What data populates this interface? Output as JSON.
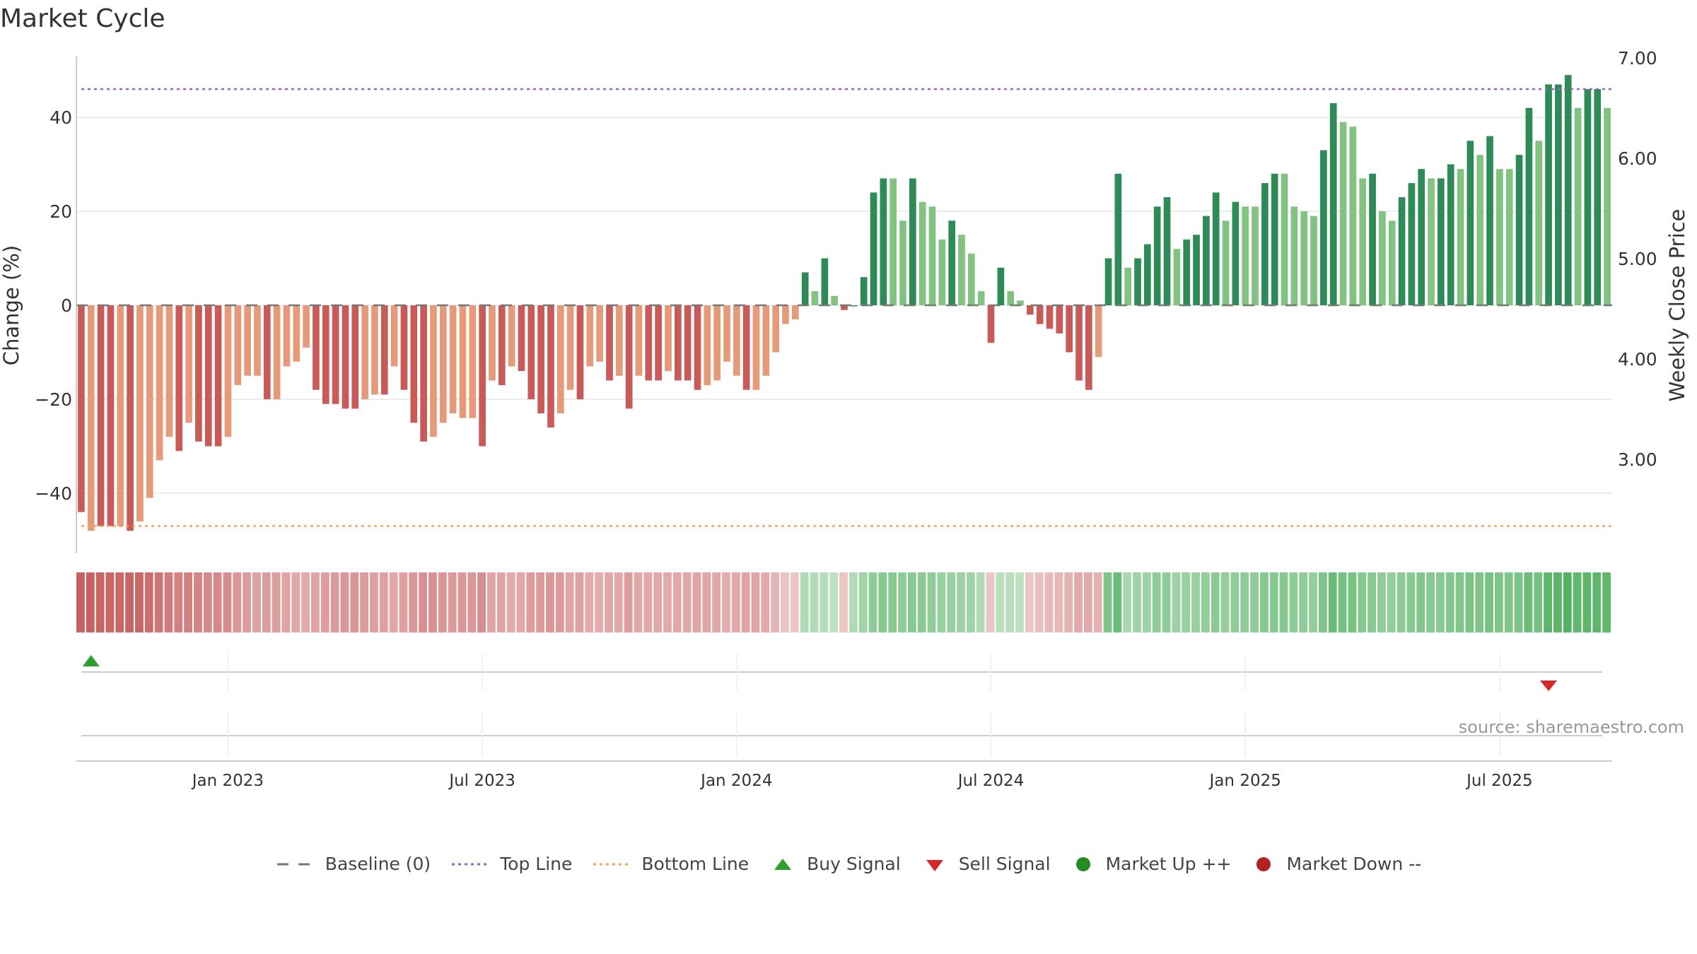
{
  "title": "Market Cycle",
  "source": "source: sharemaestro.com",
  "legend": {
    "baseline": "Baseline (0)",
    "top_line": "Top Line",
    "bottom_line": "Bottom Line",
    "buy_signal": "Buy Signal",
    "sell_signal": "Sell Signal",
    "market_up": "Market Up ++",
    "market_down": "Market Down --"
  },
  "colors": {
    "neg_dark": "#c85a5a",
    "neg_light": "#e59b7a",
    "pos_dark": "#2e8b57",
    "pos_light": "#82c282",
    "top_line": "#9467bd",
    "bottom_line": "#f4a261",
    "buy": "#2ca02c",
    "sell": "#d62728",
    "market_up": "#228b22",
    "market_down": "#b22222",
    "baseline": "#777777"
  },
  "chart_data": {
    "type": "bar",
    "ylabel": "Change (%)",
    "y2label": "Weekly Close Price",
    "ylim": [
      -53,
      53
    ],
    "y_ticks": [
      -40,
      -20,
      0,
      20,
      40
    ],
    "y_tick_labels": [
      "−40",
      "−20",
      "0",
      "20",
      "40"
    ],
    "y2_tick_labels": [
      "3.00",
      "4.00",
      "5.00",
      "6.00",
      "7.00"
    ],
    "x_tick_labels": [
      "Jan 2023",
      "Jul 2023",
      "Jan 2024",
      "Jul 2024",
      "Jan 2025",
      "Jul 2025"
    ],
    "x_tick_index": [
      15,
      41,
      67,
      93,
      119,
      145
    ],
    "top_line": 46,
    "bottom_line": -47,
    "baseline": 0,
    "values": [
      -44,
      -48,
      -47,
      -47,
      -47,
      -48,
      -46,
      -41,
      -33,
      -28,
      -31,
      -25,
      -29,
      -30,
      -30,
      -28,
      -17,
      -15,
      -15,
      -20,
      -20,
      -13,
      -12,
      -9,
      -18,
      -21,
      -21,
      -22,
      -22,
      -20,
      -19,
      -19,
      -13,
      -18,
      -25,
      -29,
      -28,
      -25,
      -23,
      -24,
      -24,
      -30,
      -16,
      -17,
      -13,
      -14,
      -20,
      -23,
      -26,
      -23,
      -18,
      -20,
      -13,
      -12,
      -16,
      -15,
      -22,
      -15,
      -16,
      -16,
      -14,
      -16,
      -16,
      -18,
      -17,
      -16,
      -12,
      -15,
      -18,
      -18,
      -15,
      -10,
      -4,
      -3,
      7,
      3,
      10,
      2,
      -1,
      0,
      6,
      24,
      27,
      27,
      18,
      27,
      22,
      21,
      14,
      18,
      15,
      11,
      3,
      -8,
      8,
      3,
      1,
      -2,
      -4,
      -5,
      -6,
      -10,
      -16,
      -18,
      -11,
      10,
      28,
      8,
      10,
      13,
      21,
      23,
      12,
      14,
      15,
      19,
      24,
      18,
      22,
      21,
      21,
      26,
      28,
      28,
      21,
      20,
      19,
      33,
      43,
      39,
      38,
      27,
      28,
      20,
      18,
      23,
      26,
      29,
      27,
      27,
      30,
      29,
      35,
      32,
      36,
      29,
      29,
      32,
      42,
      35,
      47,
      47,
      49,
      42,
      46,
      46,
      42
    ],
    "shades": [
      0,
      1,
      0,
      0,
      1,
      0,
      1,
      1,
      1,
      1,
      0,
      1,
      0,
      0,
      0,
      1,
      1,
      1,
      1,
      0,
      1,
      1,
      1,
      1,
      0,
      0,
      0,
      0,
      0,
      1,
      1,
      0,
      1,
      0,
      0,
      0,
      1,
      1,
      1,
      1,
      1,
      0,
      1,
      0,
      1,
      0,
      0,
      0,
      0,
      1,
      1,
      0,
      1,
      1,
      0,
      1,
      0,
      1,
      0,
      0,
      1,
      0,
      0,
      0,
      1,
      1,
      1,
      1,
      0,
      1,
      1,
      1,
      1,
      1,
      0,
      1,
      0,
      1,
      0,
      0,
      0,
      0,
      0,
      1,
      1,
      0,
      1,
      1,
      1,
      0,
      1,
      1,
      1,
      0,
      0,
      1,
      1,
      0,
      0,
      0,
      0,
      0,
      0,
      0,
      1,
      0,
      0,
      1,
      0,
      0,
      0,
      0,
      1,
      0,
      0,
      0,
      0,
      1,
      0,
      1,
      1,
      0,
      0,
      1,
      1,
      1,
      1,
      0,
      0,
      1,
      1,
      1,
      0,
      1,
      1,
      0,
      0,
      0,
      1,
      0,
      0,
      1,
      0,
      1,
      0,
      1,
      1,
      0,
      0,
      1,
      0,
      0,
      0,
      1,
      0,
      0,
      1
    ],
    "strength": [
      0.95,
      0.95,
      0.92,
      0.9,
      0.9,
      0.92,
      0.9,
      0.85,
      0.8,
      0.75,
      0.72,
      0.7,
      0.68,
      0.66,
      0.65,
      0.62,
      0.55,
      0.5,
      0.48,
      0.5,
      0.5,
      0.45,
      0.42,
      0.4,
      0.45,
      0.5,
      0.52,
      0.55,
      0.55,
      0.5,
      0.48,
      0.48,
      0.42,
      0.48,
      0.55,
      0.6,
      0.6,
      0.55,
      0.52,
      0.55,
      0.55,
      0.62,
      0.45,
      0.45,
      0.4,
      0.42,
      0.5,
      0.52,
      0.55,
      0.52,
      0.45,
      0.48,
      0.4,
      0.38,
      0.42,
      0.42,
      0.5,
      0.42,
      0.42,
      0.42,
      0.4,
      0.42,
      0.42,
      0.45,
      0.44,
      0.42,
      0.38,
      0.4,
      0.45,
      0.45,
      0.4,
      0.32,
      0.22,
      0.2,
      0.3,
      0.3,
      0.28,
      0.22,
      0.2,
      0.3,
      0.4,
      0.5,
      0.55,
      0.55,
      0.5,
      0.55,
      0.52,
      0.5,
      0.45,
      0.45,
      0.42,
      0.4,
      0.3,
      0.2,
      0.25,
      0.25,
      0.22,
      0.2,
      0.25,
      0.28,
      0.3,
      0.35,
      0.4,
      0.4,
      0.35,
      0.6,
      0.72,
      0.35,
      0.4,
      0.42,
      0.5,
      0.5,
      0.42,
      0.45,
      0.45,
      0.48,
      0.52,
      0.48,
      0.5,
      0.5,
      0.5,
      0.55,
      0.55,
      0.55,
      0.5,
      0.5,
      0.48,
      0.6,
      0.72,
      0.65,
      0.65,
      0.55,
      0.55,
      0.5,
      0.48,
      0.52,
      0.55,
      0.58,
      0.55,
      0.55,
      0.58,
      0.58,
      0.62,
      0.6,
      0.65,
      0.6,
      0.6,
      0.62,
      0.72,
      0.65,
      0.8,
      0.82,
      0.85,
      0.78,
      0.8,
      0.8,
      0.78
    ],
    "buy_signals": [
      1
    ],
    "sell_signals": [
      150
    ]
  }
}
